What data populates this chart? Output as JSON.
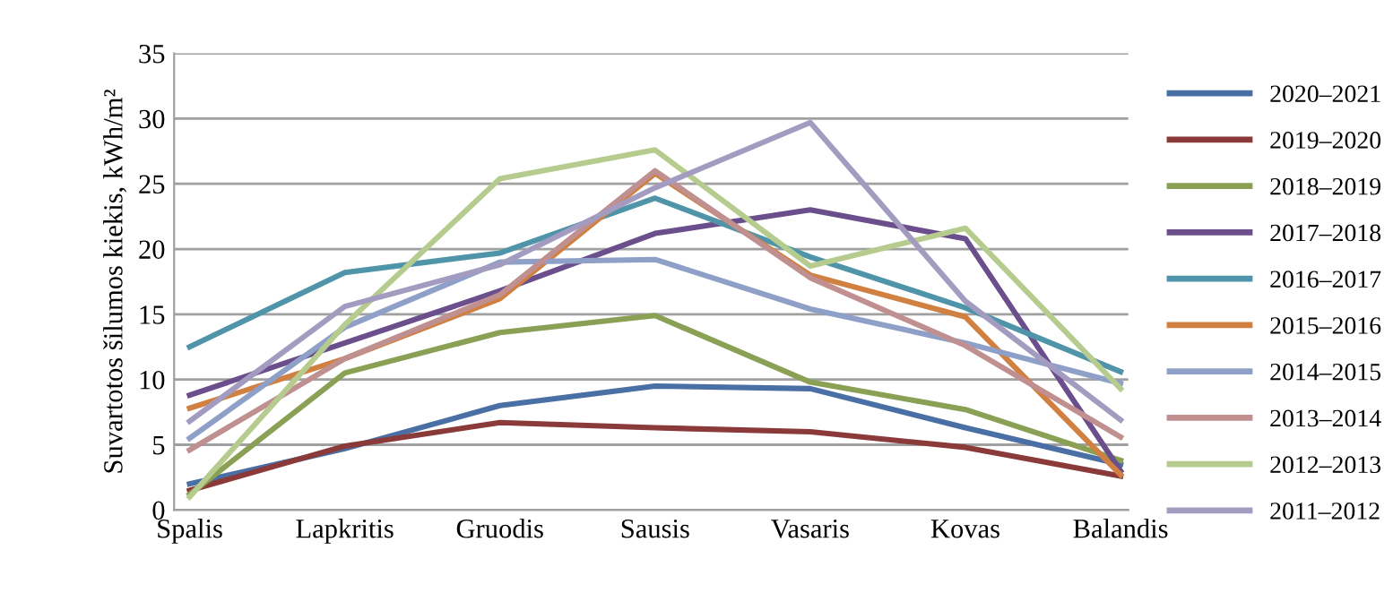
{
  "chart_data": {
    "type": "line",
    "ylabel": "Suvartotos šilumos kiekis, kWh/m²",
    "categories": [
      "Spalis",
      "Lapkritis",
      "Gruodis",
      "Sausis",
      "Vasaris",
      "Kovas",
      "Balandis"
    ],
    "ylim": [
      0,
      35
    ],
    "yticks": [
      0,
      5,
      10,
      15,
      20,
      25,
      30,
      35
    ],
    "grid": "y",
    "legend": "right",
    "marker": "none",
    "line_style": "solid",
    "series": [
      {
        "name": "2020–2021",
        "color": "#4a6fa5",
        "values": [
          2.0,
          4.7,
          8.0,
          9.5,
          9.3,
          6.3,
          3.5
        ]
      },
      {
        "name": "2019–2020",
        "color": "#8b3a3a",
        "values": [
          1.5,
          4.9,
          6.7,
          6.3,
          6.0,
          4.8,
          2.6
        ]
      },
      {
        "name": "2018–2019",
        "color": "#8aa055",
        "values": [
          1.2,
          10.5,
          13.6,
          14.9,
          9.8,
          7.7,
          3.8
        ]
      },
      {
        "name": "2017–2018",
        "color": "#6b4f8c",
        "values": [
          8.8,
          12.8,
          16.8,
          21.2,
          23.0,
          20.8,
          3.0
        ]
      },
      {
        "name": "2016–2017",
        "color": "#4f94a8",
        "values": [
          12.5,
          18.2,
          19.7,
          23.9,
          19.4,
          15.5,
          10.6
        ]
      },
      {
        "name": "2015–2016",
        "color": "#d08040",
        "values": [
          7.8,
          11.6,
          16.2,
          25.8,
          18.0,
          14.8,
          2.7
        ]
      },
      {
        "name": "2014–2015",
        "color": "#8fa0c8",
        "values": [
          5.5,
          14.0,
          19.0,
          19.2,
          15.4,
          12.8,
          9.7
        ]
      },
      {
        "name": "2013–2014",
        "color": "#c09090",
        "values": [
          4.6,
          11.6,
          16.5,
          26.0,
          17.8,
          12.6,
          5.6
        ]
      },
      {
        "name": "2012–2013",
        "color": "#b6cc8e",
        "values": [
          1.0,
          14.2,
          25.4,
          27.6,
          18.7,
          21.6,
          9.3
        ]
      },
      {
        "name": "2011–2012",
        "color": "#a49cc0",
        "values": [
          6.8,
          15.6,
          18.8,
          24.7,
          29.7,
          16.0,
          6.9
        ]
      }
    ]
  }
}
